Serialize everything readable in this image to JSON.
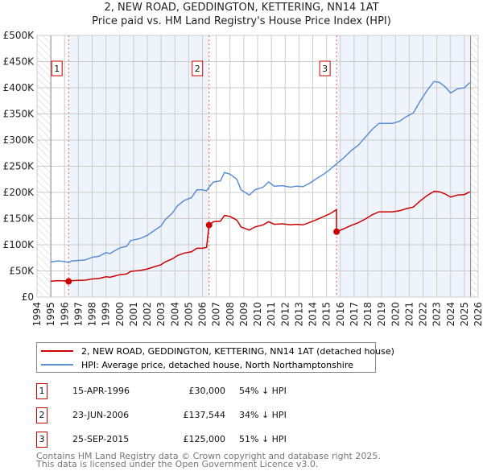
{
  "title_line1": "2, NEW ROAD, GEDDINGTON, KETTERING, NN14 1AT",
  "title_line2": "Price paid vs. HM Land Registry's House Price Index (HPI)",
  "colors": {
    "property": "#cc0000",
    "hpi": "#5b8fd4",
    "shade": "#eef3fc",
    "grid": "#cccccc"
  },
  "chart_data": {
    "type": "line",
    "title": "Price paid vs. HM Land Registry's House Price Index (HPI)",
    "xlim": [
      1994,
      2026
    ],
    "ylim": [
      0,
      500000
    ],
    "ytick_labels": [
      "£0",
      "£50K",
      "£100K",
      "£150K",
      "£200K",
      "£250K",
      "£300K",
      "£350K",
      "£400K",
      "£450K",
      "£500K"
    ],
    "ytick_values": [
      0,
      50000,
      100000,
      150000,
      200000,
      250000,
      300000,
      350000,
      400000,
      450000,
      500000
    ],
    "xtick_labels": [
      "1994",
      "1995",
      "1996",
      "1997",
      "1998",
      "1999",
      "2000",
      "2001",
      "2002",
      "2003",
      "2004",
      "2005",
      "2006",
      "2007",
      "2008",
      "2009",
      "2010",
      "2011",
      "2012",
      "2013",
      "2014",
      "2015",
      "2016",
      "2017",
      "2018",
      "2019",
      "2020",
      "2021",
      "2022",
      "2023",
      "2024",
      "2025",
      "2026"
    ],
    "grid": true,
    "series": [
      {
        "name": "2, NEW ROAD, GEDDINGTON, KETTERING, NN14 1AT (detached house)",
        "color": "#cc0000",
        "x": [
          1995.0,
          1995.5,
          1996.0,
          1996.29,
          1996.5,
          1997.0,
          1997.5,
          1998.0,
          1998.5,
          1999.0,
          1999.3,
          1999.6,
          2000.0,
          2000.5,
          2000.8,
          2001.5,
          2002.0,
          2002.5,
          2003.0,
          2003.3,
          2003.8,
          2004.2,
          2004.7,
          2005.2,
          2005.6,
          2006.0,
          2006.3,
          2006.48,
          2006.8,
          2007.3,
          2007.6,
          2008.0,
          2008.5,
          2008.8,
          2009.4,
          2009.8,
          2010.4,
          2010.8,
          2011.2,
          2011.8,
          2012.4,
          2012.8,
          2013.3,
          2013.8,
          2014.2,
          2014.8,
          2015.3,
          2015.72,
          2015.73,
          2016.2,
          2016.8,
          2017.3,
          2017.8,
          2018.3,
          2018.8,
          2019.3,
          2019.8,
          2020.3,
          2020.8,
          2021.3,
          2021.8,
          2022.3,
          2022.8,
          2023.2,
          2023.6,
          2024.0,
          2024.5,
          2025.0,
          2025.4
        ],
        "values": [
          30500,
          31400,
          30900,
          30000,
          31400,
          31900,
          32300,
          34600,
          35500,
          38700,
          37800,
          40000,
          42800,
          44100,
          49100,
          51000,
          53700,
          57800,
          61900,
          67300,
          72800,
          79600,
          84200,
          86500,
          93300,
          93300,
          95000,
          137544,
          144000,
          145000,
          156000,
          154000,
          147000,
          134000,
          128000,
          134000,
          138000,
          144000,
          139000,
          140000,
          138000,
          139000,
          138000,
          143000,
          147000,
          154000,
          160000,
          167000,
          125000,
          130000,
          137000,
          142000,
          149000,
          157000,
          163000,
          163000,
          163000,
          165000,
          169000,
          172000,
          184000,
          194000,
          202000,
          201000,
          197000,
          191000,
          195000,
          196000,
          201000
        ]
      },
      {
        "name": "HPI: Average price, detached house, North Northamptonshire",
        "color": "#5b8fd4",
        "x": [
          1995.0,
          1995.5,
          1996.0,
          1996.29,
          1996.5,
          1997.0,
          1997.5,
          1998.0,
          1998.5,
          1999.0,
          1999.3,
          1999.6,
          2000.0,
          2000.5,
          2000.8,
          2001.5,
          2002.0,
          2002.5,
          2003.0,
          2003.3,
          2003.8,
          2004.2,
          2004.7,
          2005.2,
          2005.6,
          2006.0,
          2006.3,
          2006.48,
          2006.8,
          2007.3,
          2007.6,
          2008.0,
          2008.5,
          2008.8,
          2009.4,
          2009.8,
          2010.4,
          2010.8,
          2011.2,
          2011.8,
          2012.4,
          2012.8,
          2013.3,
          2013.8,
          2014.2,
          2014.8,
          2015.3,
          2015.73,
          2016.2,
          2016.8,
          2017.3,
          2017.8,
          2018.3,
          2018.8,
          2019.3,
          2019.8,
          2020.3,
          2020.8,
          2021.3,
          2021.8,
          2022.3,
          2022.8,
          2023.2,
          2023.6,
          2024.0,
          2024.5,
          2025.0,
          2025.4
        ],
        "values": [
          67000,
          69000,
          68000,
          66000,
          69000,
          70000,
          71000,
          76000,
          78000,
          85000,
          83000,
          88000,
          94000,
          97000,
          108000,
          112000,
          118000,
          127000,
          136000,
          148000,
          160000,
          175000,
          185000,
          190000,
          205000,
          205000,
          203000,
          210000,
          220000,
          222000,
          238000,
          235000,
          225000,
          205000,
          195000,
          205000,
          210000,
          220000,
          212000,
          213000,
          210000,
          212000,
          211000,
          218000,
          225000,
          235000,
          245000,
          255000,
          265000,
          280000,
          290000,
          305000,
          320000,
          332000,
          332000,
          332000,
          336000,
          345000,
          352000,
          375000,
          395000,
          412000,
          410000,
          402000,
          390000,
          398000,
          400000,
          410000
        ]
      }
    ],
    "sales": [
      {
        "num": "1",
        "x": 1996.29,
        "price": 30000
      },
      {
        "num": "2",
        "x": 2006.48,
        "price": 137544
      },
      {
        "num": "3",
        "x": 2015.73,
        "price": 125000
      }
    ],
    "data_end": 2025.45,
    "legend_position": "below"
  },
  "legend": [
    "2, NEW ROAD, GEDDINGTON, KETTERING, NN14 1AT (detached house)",
    "HPI: Average price, detached house, North Northamptonshire"
  ],
  "transactions": [
    {
      "num": "1",
      "date": "15-APR-1996",
      "price": "£30,000",
      "hpi": "54% ↓ HPI"
    },
    {
      "num": "2",
      "date": "23-JUN-2006",
      "price": "£137,544",
      "hpi": "34% ↓ HPI"
    },
    {
      "num": "3",
      "date": "25-SEP-2015",
      "price": "£125,000",
      "hpi": "51% ↓ HPI"
    }
  ],
  "footer": [
    "Contains HM Land Registry data © Crown copyright and database right 2025.",
    "This data is licensed under the Open Government Licence v3.0."
  ]
}
